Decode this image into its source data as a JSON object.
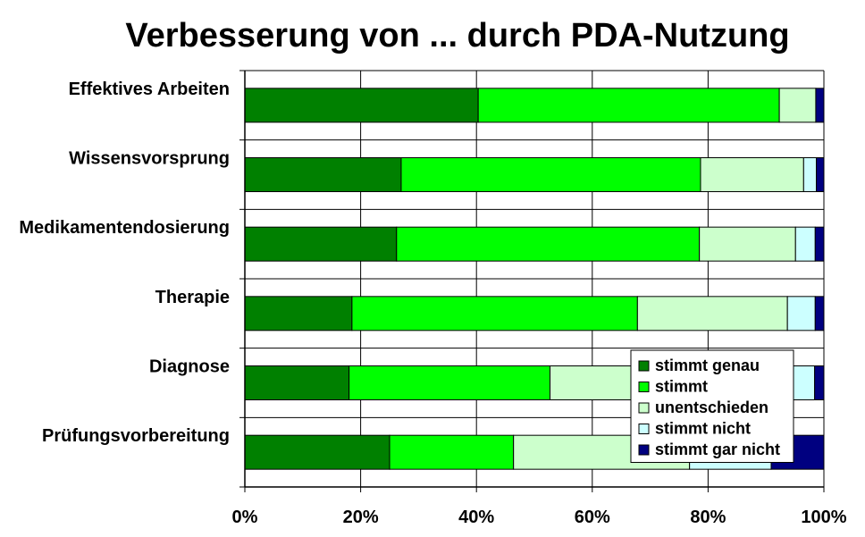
{
  "chart_data": {
    "type": "bar",
    "orientation": "horizontal",
    "stacked": "percent",
    "title": "Verbesserung von ... durch PDA-Nutzung",
    "categories": [
      "Effektives Arbeiten",
      "Wissensvorsprung",
      "Medikamentendosierung",
      "Therapie",
      "Diagnose",
      "Prüfungsvorbereitung"
    ],
    "series": [
      {
        "name": "stimmt genau",
        "color": "#008000",
        "values": [
          40.3,
          27.0,
          26.2,
          18.5,
          18.0,
          25.0
        ]
      },
      {
        "name": "stimmt",
        "color": "#00ff00",
        "values": [
          52.0,
          51.7,
          52.3,
          49.3,
          34.7,
          21.4
        ]
      },
      {
        "name": "unentschieden",
        "color": "#ccffcc",
        "values": [
          6.3,
          17.8,
          16.6,
          25.9,
          34.1,
          30.4
        ]
      },
      {
        "name": "stimmt nicht",
        "color": "#ccffff",
        "values": [
          0.0,
          2.2,
          3.4,
          4.8,
          11.6,
          14.1
        ]
      },
      {
        "name": "stimmt gar nicht",
        "color": "#000080",
        "values": [
          1.4,
          1.3,
          1.5,
          1.5,
          1.6,
          9.1
        ]
      }
    ],
    "xlim": [
      0,
      100
    ],
    "xticks": [
      "0%",
      "20%",
      "40%",
      "60%",
      "80%",
      "100%"
    ],
    "grid": true,
    "legend_position": "bottom-right"
  }
}
